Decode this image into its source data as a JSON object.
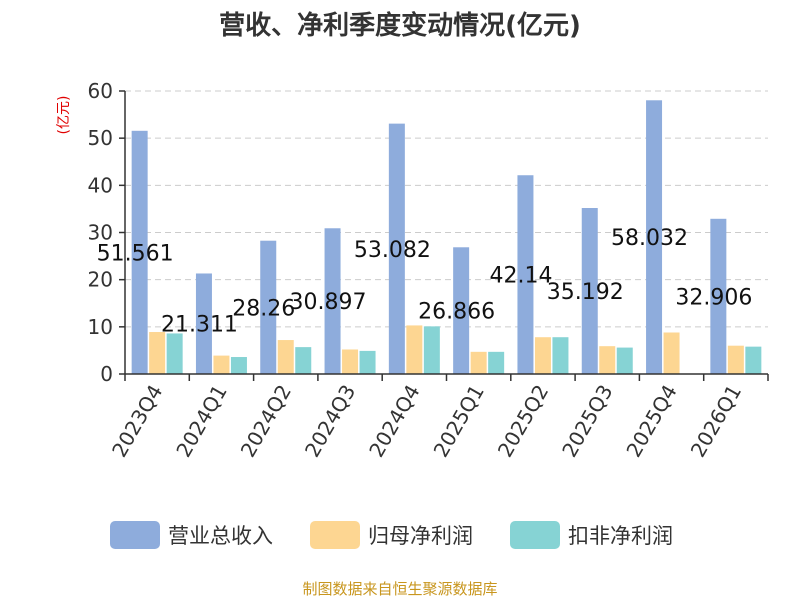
{
  "chart_data": {
    "type": "bar",
    "title": "营收、净利季度变动情况(亿元)",
    "ylabel": "(亿元)",
    "xlabel": "",
    "ylim": [
      0,
      60
    ],
    "yticks": [
      0,
      10,
      20,
      30,
      40,
      50,
      60
    ],
    "grid": true,
    "legend_position": "bottom",
    "categories": [
      "2023Q4",
      "2024Q1",
      "2024Q2",
      "2024Q3",
      "2024Q4",
      "2025Q1",
      "2025Q2",
      "2025Q3",
      "2025Q4",
      "2026Q1"
    ],
    "series": [
      {
        "name": "营业总收入",
        "color": "#8eacdc",
        "values": [
          51.561,
          21.311,
          28.26,
          30.897,
          53.082,
          26.866,
          42.14,
          35.192,
          58.032,
          32.906
        ]
      },
      {
        "name": "归母净利润",
        "color": "#fdd692",
        "values": [
          8.9,
          3.9,
          7.2,
          5.2,
          10.3,
          4.7,
          7.8,
          5.9,
          8.8,
          6.0
        ]
      },
      {
        "name": "扣非净利润",
        "color": "#86d3d4",
        "values": [
          8.6,
          3.6,
          5.7,
          4.9,
          10.1,
          4.7,
          7.8,
          5.6,
          null,
          5.8
        ]
      }
    ],
    "data_labels": [
      "51.561",
      "21.311",
      "28.26",
      "30.897",
      "53.082",
      "26.866",
      "42.14",
      "35.192",
      "58.032",
      "32.906"
    ]
  },
  "source": "制图数据来自恒生聚源数据库"
}
